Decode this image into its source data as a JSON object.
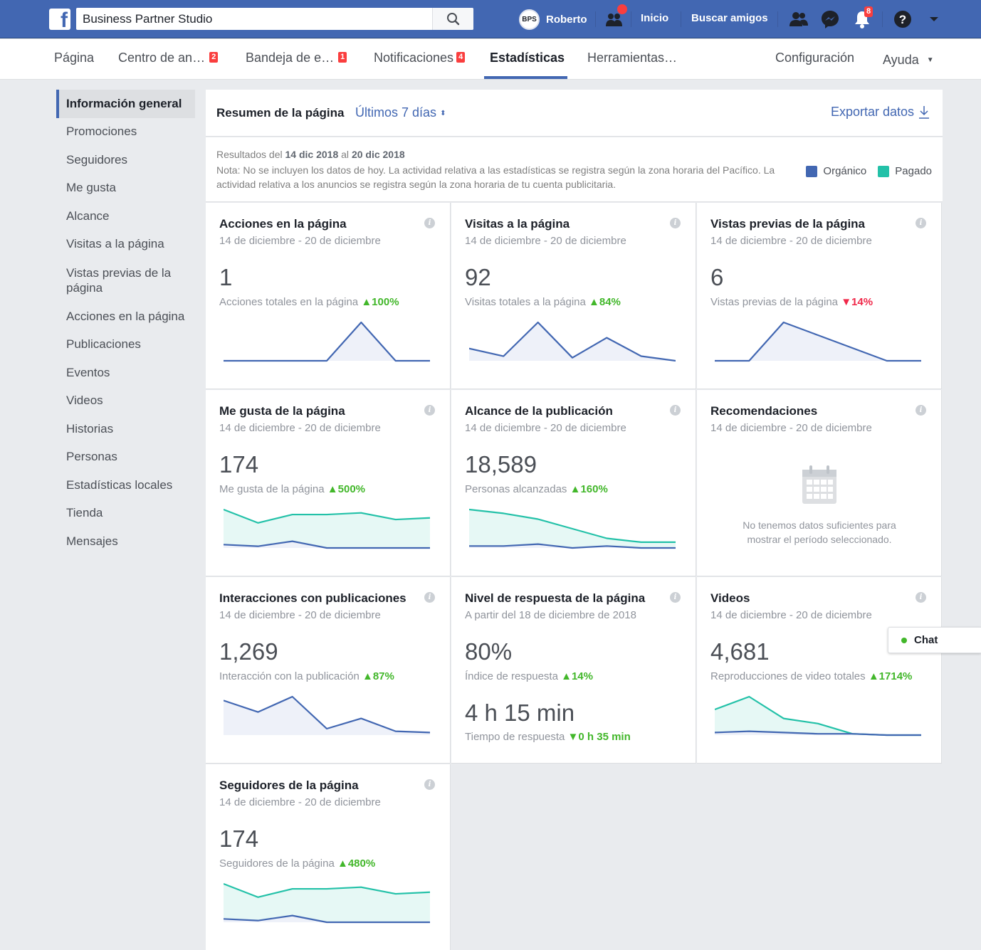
{
  "topbar": {
    "search_value": "Business Partner Studio",
    "user_initials": "BPS",
    "user_name": "Roberto",
    "home": "Inicio",
    "find_friends": "Buscar amigos",
    "notifications_count": "8"
  },
  "tabs": {
    "page": "Página",
    "ads_center": "Centro de an…",
    "ads_center_badge": "2",
    "inbox": "Bandeja de e…",
    "inbox_badge": "1",
    "notifications": "Notificaciones",
    "notifications_badge": "4",
    "insights": "Estadísticas",
    "tools": "Herramientas…",
    "settings": "Configuración",
    "help": "Ayuda"
  },
  "sidebar": {
    "items": [
      "Información general",
      "Promociones",
      "Seguidores",
      "Me gusta",
      "Alcance",
      "Visitas a la página",
      "Vistas previas de la página",
      "Acciones en la página",
      "Publicaciones",
      "Eventos",
      "Videos",
      "Historias",
      "Personas",
      "Estadísticas locales",
      "Tienda",
      "Mensajes"
    ]
  },
  "summary": {
    "title": "Resumen de la página",
    "range": "Últimos 7 días",
    "export": "Exportar datos",
    "results_prefix": "Resultados del",
    "date_from": "14 dic 2018",
    "results_mid": "al",
    "date_to": "20 dic 2018",
    "note": "Nota: No se incluyen los datos de hoy. La actividad relativa a las estadísticas se registra según la zona horaria del Pacífico. La actividad relativa a los anuncios se registra según la zona horaria de tu cuenta publicitaria.",
    "legend_organic": "Orgánico",
    "legend_paid": "Pagado",
    "organic_color": "#4267b2",
    "paid_color": "#23c1a8"
  },
  "cards": {
    "actions": {
      "title": "Acciones en la página",
      "subtitle": "14 de diciembre - 20 de diciembre",
      "value": "1",
      "label": "Acciones totales en la página",
      "change": "100%",
      "organic": [
        0,
        0,
        0,
        0,
        1,
        0,
        0
      ]
    },
    "visits": {
      "title": "Visitas a la página",
      "subtitle": "14 de diciembre - 20 de diciembre",
      "value": "92",
      "label": "Visitas totales a la página",
      "change": "84%",
      "organic": [
        8,
        3,
        25,
        2,
        15,
        3,
        0
      ]
    },
    "previews": {
      "title": "Vistas previas de la página",
      "subtitle": "14 de diciembre - 20 de diciembre",
      "value": "6",
      "label": "Vistas previas de la página",
      "change": "14%",
      "organic": [
        0,
        0,
        3,
        2,
        1,
        0,
        0
      ]
    },
    "likes": {
      "title": "Me gusta de la página",
      "subtitle": "14 de diciembre - 20 de diciembre",
      "value": "174",
      "label": "Me gusta de la página",
      "change": "500%",
      "organic": [
        2,
        1,
        4,
        0,
        0,
        0,
        0
      ],
      "paid": [
        23,
        15,
        20,
        20,
        21,
        17,
        18
      ]
    },
    "reach": {
      "title": "Alcance de la publicación",
      "subtitle": "14 de diciembre - 20 de diciembre",
      "value": "18,589",
      "label": "Personas alcanzadas",
      "change": "160%",
      "organic": [
        1,
        1,
        2,
        0,
        1,
        0,
        0
      ],
      "paid": [
        20,
        18,
        15,
        10,
        5,
        3,
        3
      ]
    },
    "recommendations": {
      "title": "Recomendaciones",
      "subtitle": "14 de diciembre - 20 de diciembre",
      "nodata": "No tenemos datos suficientes para mostrar el período seleccionado."
    },
    "engagement": {
      "title": "Interacciones con publicaciones",
      "subtitle": "14 de diciembre - 20 de diciembre",
      "value": "1,269",
      "label": "Interacción con la publicación",
      "change": "87%",
      "organic": [
        27,
        18,
        30,
        5,
        13,
        3,
        2
      ]
    },
    "response": {
      "title": "Nivel de respuesta de la página",
      "subtitle": "A partir del 18 de diciembre de 2018",
      "value": "80%",
      "label": "Índice de respuesta",
      "change": "14%",
      "value2": "4 h 15 min",
      "label2": "Tiempo de respuesta",
      "change2": "0 h 35 min"
    },
    "videos": {
      "title": "Videos",
      "subtitle": "14 de diciembre - 20 de diciembre",
      "value": "4,681",
      "label": "Reproducciones de video totales",
      "change": "1714%",
      "organic": [
        2,
        3,
        2,
        1,
        1,
        0,
        0
      ],
      "paid": [
        20,
        30,
        13,
        9,
        1,
        0,
        0
      ]
    },
    "followers": {
      "title": "Seguidores de la página",
      "subtitle": "14 de diciembre - 20 de diciembre",
      "value": "174",
      "label": "Seguidores de la página",
      "change": "480%",
      "organic": [
        2,
        1,
        4,
        0,
        0,
        0,
        0
      ],
      "paid": [
        23,
        15,
        20,
        20,
        21,
        17,
        18
      ]
    }
  },
  "chat": {
    "label": "Chat"
  }
}
